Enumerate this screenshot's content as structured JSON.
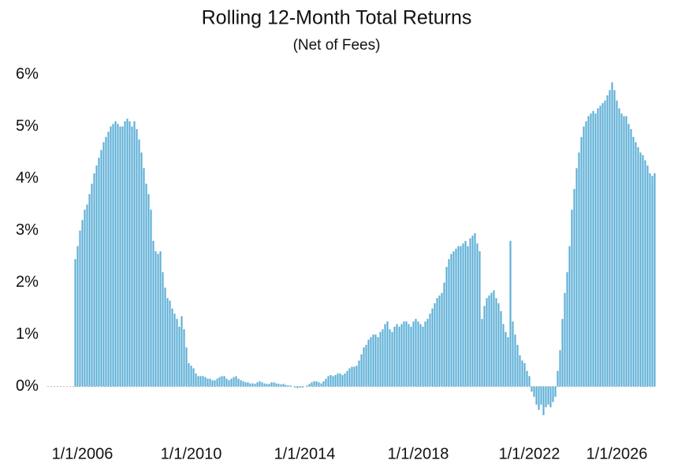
{
  "chart_data": {
    "type": "bar",
    "title": "Rolling 12-Month Total Returns",
    "subtitle": "(Net of Fees)",
    "color": "#5aaed6",
    "categories": [
      null,
      null,
      null,
      "1/1/2006",
      null,
      null,
      null,
      null,
      null,
      null,
      null,
      null,
      null,
      null,
      null,
      null,
      null,
      null,
      null,
      null,
      null,
      null,
      null,
      null,
      null,
      null,
      null,
      null,
      null,
      null,
      null,
      null,
      null,
      null,
      null,
      null,
      null,
      null,
      null,
      null,
      null,
      null,
      null,
      null,
      null,
      null,
      null,
      null,
      null,
      "1/1/2010",
      null,
      null,
      null,
      null,
      null,
      null,
      null,
      null,
      null,
      null,
      null,
      null,
      null,
      null,
      null,
      null,
      null,
      null,
      null,
      null,
      null,
      null,
      null,
      null,
      null,
      null,
      null,
      null,
      null,
      null,
      null,
      null,
      null,
      null,
      null,
      null,
      null,
      null,
      null,
      null,
      null,
      null,
      null,
      null,
      null,
      null,
      null,
      "1/1/2014",
      null,
      null,
      null,
      null,
      null,
      null,
      null,
      null,
      null,
      null,
      null,
      null,
      null,
      null,
      null,
      null,
      null,
      null,
      null,
      null,
      null,
      null,
      null,
      null,
      null,
      null,
      null,
      null,
      null,
      null,
      null,
      null,
      null,
      null,
      null,
      null,
      null,
      null,
      null,
      null,
      null,
      null,
      null,
      null,
      null,
      null,
      null,
      "1/1/2018",
      null,
      null,
      null,
      null,
      null,
      null,
      null,
      null,
      null,
      null,
      null,
      null,
      null,
      null,
      null,
      null,
      null,
      null,
      null,
      null,
      null,
      null,
      null,
      null,
      null,
      null,
      null,
      null,
      null,
      null,
      null,
      null,
      null,
      null,
      null,
      null,
      null,
      null,
      null,
      null,
      null,
      null,
      null,
      null,
      null,
      null,
      "1/1/2022",
      null,
      null,
      null,
      null,
      null,
      null,
      null,
      null,
      null,
      null,
      null,
      null,
      null,
      null,
      null,
      null,
      null,
      null,
      null,
      null,
      null,
      null,
      null,
      null,
      null,
      null,
      null,
      null,
      null,
      null,
      null,
      null,
      null,
      null,
      null,
      null,
      "1/1/2026",
      null,
      null,
      null,
      null,
      null,
      null,
      null,
      null,
      null,
      null,
      null,
      null,
      null,
      null,
      null,
      null
    ],
    "values": [
      2.45,
      2.7,
      3.0,
      3.2,
      3.4,
      3.5,
      3.7,
      3.9,
      4.1,
      4.25,
      4.4,
      4.55,
      4.7,
      4.8,
      4.9,
      5.0,
      5.05,
      5.1,
      5.05,
      5.0,
      5.0,
      5.1,
      5.15,
      5.1,
      5.0,
      5.1,
      4.95,
      4.75,
      4.5,
      4.2,
      3.9,
      3.7,
      3.4,
      2.8,
      2.6,
      2.55,
      2.6,
      2.2,
      1.9,
      1.7,
      1.65,
      1.5,
      1.4,
      1.3,
      1.15,
      1.35,
      1.1,
      0.75,
      0.45,
      0.4,
      0.35,
      0.25,
      0.2,
      0.2,
      0.2,
      0.18,
      0.15,
      0.15,
      0.12,
      0.12,
      0.15,
      0.18,
      0.2,
      0.2,
      0.15,
      0.12,
      0.15,
      0.18,
      0.2,
      0.15,
      0.12,
      0.1,
      0.08,
      0.08,
      0.06,
      0.06,
      0.05,
      0.08,
      0.1,
      0.08,
      0.06,
      0.05,
      0.05,
      0.08,
      0.08,
      0.06,
      0.05,
      0.04,
      0.05,
      0.03,
      0.02,
      0.02,
      0.0,
      -0.02,
      -0.03,
      -0.02,
      -0.02,
      0.0,
      0.02,
      0.05,
      0.08,
      0.1,
      0.1,
      0.08,
      0.06,
      0.1,
      0.15,
      0.2,
      0.22,
      0.2,
      0.22,
      0.25,
      0.25,
      0.22,
      0.25,
      0.3,
      0.35,
      0.38,
      0.38,
      0.4,
      0.5,
      0.62,
      0.75,
      0.8,
      0.9,
      0.95,
      1.0,
      1.0,
      0.95,
      1.05,
      1.1,
      1.2,
      1.25,
      1.1,
      1.05,
      1.15,
      1.2,
      1.15,
      1.2,
      1.25,
      1.25,
      1.2,
      1.15,
      1.25,
      1.3,
      1.25,
      1.2,
      1.15,
      1.25,
      1.3,
      1.4,
      1.5,
      1.6,
      1.7,
      1.75,
      1.8,
      2.0,
      2.3,
      2.45,
      2.55,
      2.6,
      2.65,
      2.7,
      2.7,
      2.75,
      2.8,
      2.7,
      2.85,
      2.9,
      2.95,
      2.75,
      2.6,
      1.3,
      1.55,
      1.7,
      1.75,
      1.8,
      1.85,
      1.7,
      1.6,
      1.45,
      1.2,
      1.05,
      0.95,
      2.8,
      1.25,
      1.0,
      0.8,
      0.6,
      0.5,
      0.45,
      0.3,
      0.2,
      -0.1,
      -0.2,
      -0.35,
      -0.45,
      -0.35,
      -0.55,
      -0.4,
      -0.35,
      -0.4,
      -0.3,
      -0.2,
      0.3,
      0.7,
      1.3,
      1.8,
      2.2,
      2.7,
      3.4,
      3.8,
      4.2,
      4.5,
      4.8,
      5.0,
      5.1,
      5.2,
      5.25,
      5.3,
      5.25,
      5.35,
      5.4,
      5.45,
      5.5,
      5.6,
      5.7,
      5.85,
      5.7,
      5.5,
      5.35,
      5.25,
      5.2,
      5.2,
      5.05,
      4.95,
      4.8,
      4.7,
      4.6,
      4.5,
      4.45,
      4.35,
      4.25,
      4.1,
      4.05,
      4.1
    ],
    "ylim": [
      -0.9,
      6.1
    ],
    "yticks": [
      {
        "value": 0,
        "label": "0%"
      },
      {
        "value": 1,
        "label": "1%"
      },
      {
        "value": 2,
        "label": "2%"
      },
      {
        "value": 3,
        "label": "3%"
      },
      {
        "value": 4,
        "label": "4%"
      },
      {
        "value": 5,
        "label": "5%"
      },
      {
        "value": 6,
        "label": "6%"
      }
    ],
    "grid": false
  }
}
